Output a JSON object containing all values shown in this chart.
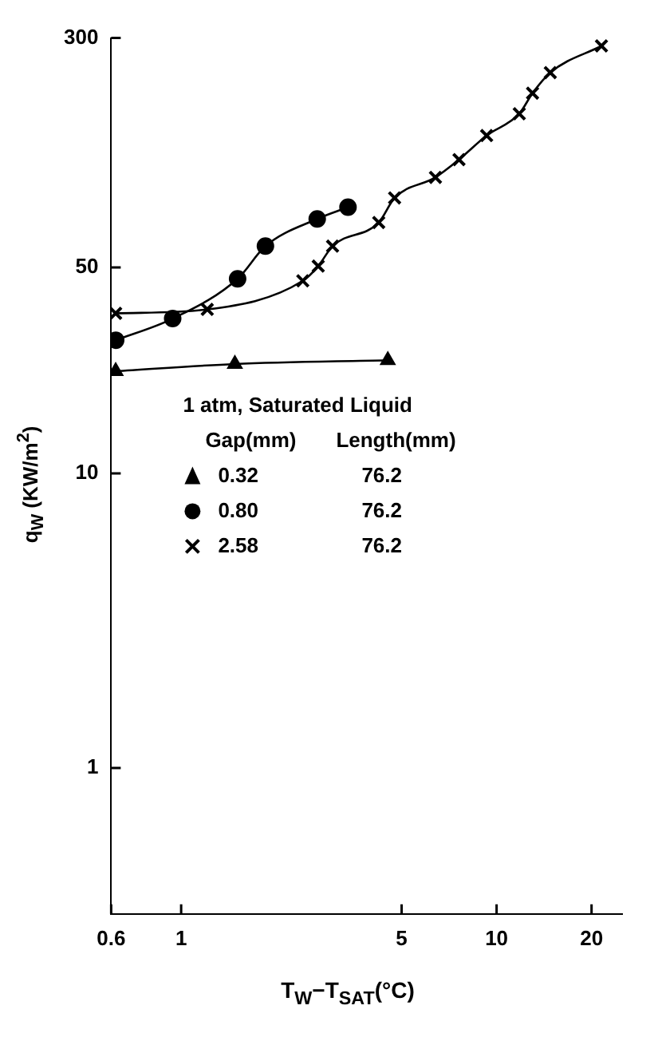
{
  "chart_data": {
    "type": "line",
    "xlabel": "T$_{W}$−T$_{SAT}$(°C)",
    "ylabel": "q$_{W}$ (KW/m$^{2}$)",
    "log": "xy",
    "xlim": [
      0.6,
      25
    ],
    "xticks": [
      0.6,
      1,
      5,
      10,
      20
    ],
    "ylim": [
      0.32,
      300
    ],
    "yticks": [
      1,
      10,
      50,
      300
    ],
    "grid": false,
    "legend": "left",
    "legend_title": "1 atm, Saturated Liquid",
    "annotations": [
      "Gap(mm)",
      "Length(mm)",
      "76.2",
      "76.2",
      "76.2"
    ],
    "series": [
      {
        "name": "0.32",
        "color": "#000000",
        "marker": "triangle",
        "x": [
          0.62,
          1.48,
          4.52
        ],
        "values": [
          22.2,
          23.5,
          24.2
        ]
      },
      {
        "name": "0.80",
        "color": "#000000",
        "marker": "circle",
        "x": [
          0.62,
          0.94,
          1.51,
          1.85,
          2.7,
          3.38
        ],
        "values": [
          28.3,
          33.5,
          45.7,
          59,
          73,
          80
        ]
      },
      {
        "name": "2.58",
        "color": "#000000",
        "marker": "cross",
        "x": [
          0.62,
          1.21,
          2.43,
          2.72,
          3.02,
          4.23,
          4.75,
          6.4,
          7.6,
          9.3,
          11.8,
          13.0,
          14.8,
          21.5
        ],
        "values": [
          34.9,
          36,
          45,
          50.5,
          59,
          71,
          86,
          101,
          116,
          140,
          166,
          195,
          229,
          282
        ]
      }
    ]
  }
}
